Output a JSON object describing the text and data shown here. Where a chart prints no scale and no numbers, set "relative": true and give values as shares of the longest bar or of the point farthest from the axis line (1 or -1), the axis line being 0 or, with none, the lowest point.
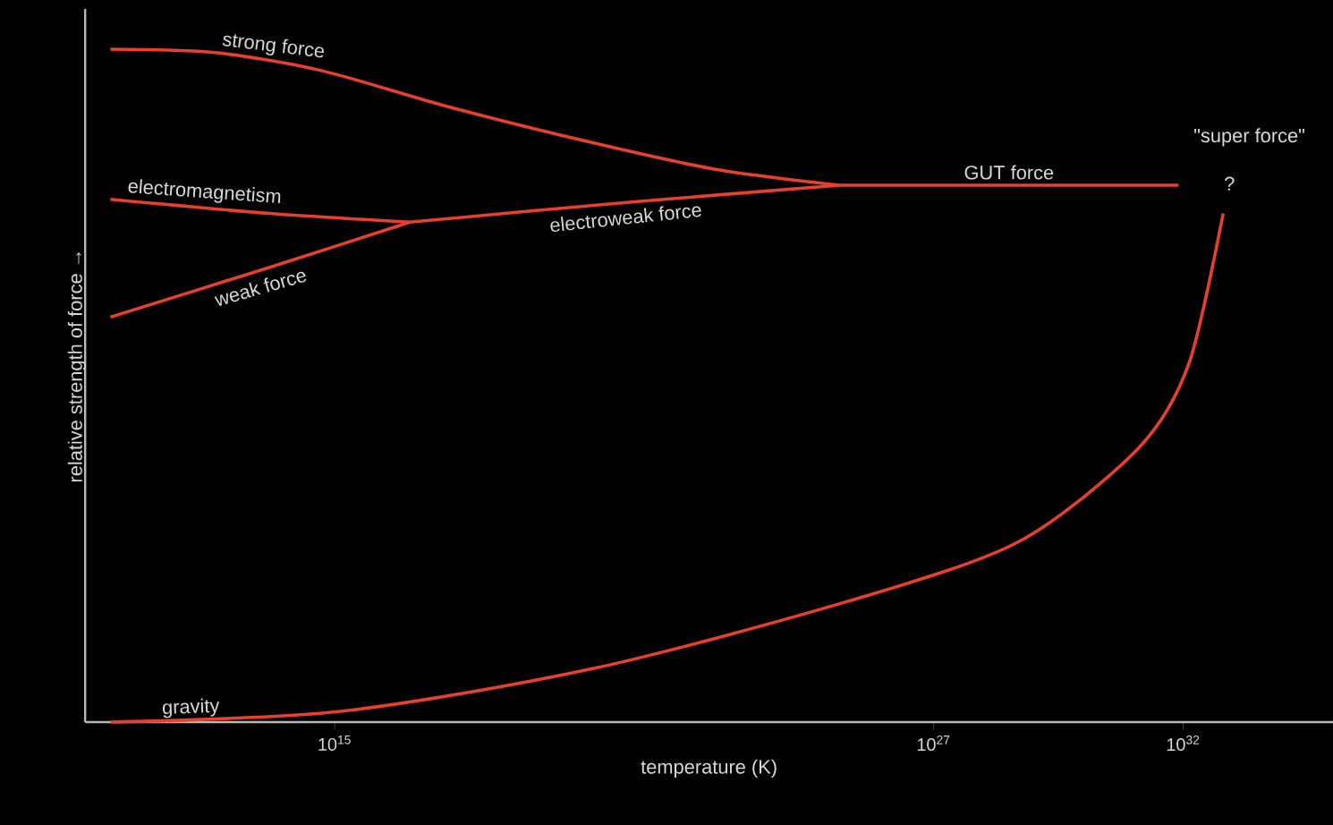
{
  "chart_data": {
    "type": "line",
    "xlabel": "temperature (K)",
    "ylabel": "relative strength of force →",
    "relative": true,
    "log": "x",
    "marker": "none",
    "grid": false,
    "xlim": [
      10000000000.0,
      1e+35
    ],
    "xticks": [
      {
        "value": 1000000000000000.0,
        "label": "10$^{15}$"
      },
      {
        "value": 1e+27,
        "label": "10$^{27}$"
      },
      {
        "value": 1e+32,
        "label": "10$^{32}$"
      }
    ],
    "series": [
      {
        "name": "strong force",
        "color": "#e8402e",
        "x": [
          32000000000.0,
          4000000000000.0,
          560000000000000.0,
          1.8e+17,
          1.3e+20,
          4e+22,
          1.3e+25
        ],
        "values": [
          1.0,
          0.995,
          0.968,
          0.915,
          0.862,
          0.822,
          0.798
        ]
      },
      {
        "name": "electromagnetism",
        "color": "#e8402e",
        "x": [
          32000000000.0,
          50000000000000.0,
          3.2e+16
        ],
        "values": [
          0.777,
          0.756,
          0.743
        ]
      },
      {
        "name": "weak force",
        "color": "#e8402e",
        "x": [
          32000000000.0,
          50000000000000.0,
          3.2e+16
        ],
        "values": [
          0.602,
          0.676,
          0.743
        ]
      },
      {
        "name": "electroweak force",
        "color": "#e8402e",
        "x": [
          3.2e+16,
          6.3e+20,
          1.3e+25
        ],
        "values": [
          0.743,
          0.772,
          0.798
        ]
      },
      {
        "name": "GUT force",
        "color": "#e8402e",
        "x": [
          1.3e+25,
          8e+31
        ],
        "values": [
          0.798,
          0.798
        ]
      },
      {
        "name": "gravity",
        "color": "#e8402e",
        "x": [
          32000000000.0,
          1300000000000000.0,
          1.6e+20,
          2e+25,
          5e+28,
          1.3e+31,
          1.3e+32,
          6.3e+32
        ],
        "values": [
          0.0,
          0.016,
          0.08,
          0.18,
          0.268,
          0.408,
          0.533,
          0.756
        ]
      }
    ],
    "annotations": [
      "\"super force\"",
      "?"
    ]
  }
}
